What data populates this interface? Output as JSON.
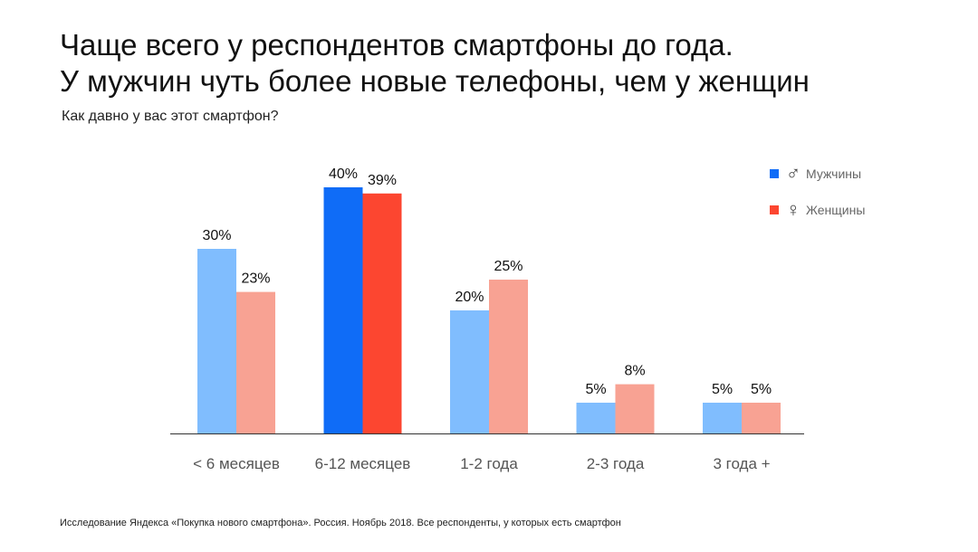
{
  "title": {
    "line1": "Чаще всего у респондентов смартфоны до года.",
    "line2": "У мужчин чуть более новые телефоны, чем у женщин"
  },
  "subtitle": "Как давно у вас этот смартфон?",
  "legend": {
    "men": {
      "label": "Мужчины",
      "symbol": "♂",
      "icon": "male-icon"
    },
    "women": {
      "label": "Женщины",
      "symbol": "♀",
      "icon": "female-icon"
    }
  },
  "footnote": "Исследование Яндекса «Покупка нового смартфона». Россия. Ноябрь 2018. Все респонденты, у которых есть смартфон",
  "colors": {
    "men": "#80BDFE",
    "women": "#F8A293",
    "men_highlight": "#0F6CF7",
    "women_highlight": "#FC4630",
    "axis": "#333333",
    "tick_text": "#555555"
  },
  "chart_data": {
    "type": "bar",
    "categories": [
      "< 6 месяцев",
      "6-12 месяцев",
      "1-2 года",
      "2-3 года",
      "3 года +"
    ],
    "series": [
      {
        "name": "Мужчины",
        "values": [
          30,
          40,
          20,
          5,
          5
        ]
      },
      {
        "name": "Женщины",
        "values": [
          23,
          39,
          25,
          8,
          5
        ]
      }
    ],
    "highlight_category": "6-12 месяцев",
    "value_suffix": "%",
    "ylim": [
      0,
      40
    ],
    "grid": false,
    "legend_position": "top-right"
  }
}
